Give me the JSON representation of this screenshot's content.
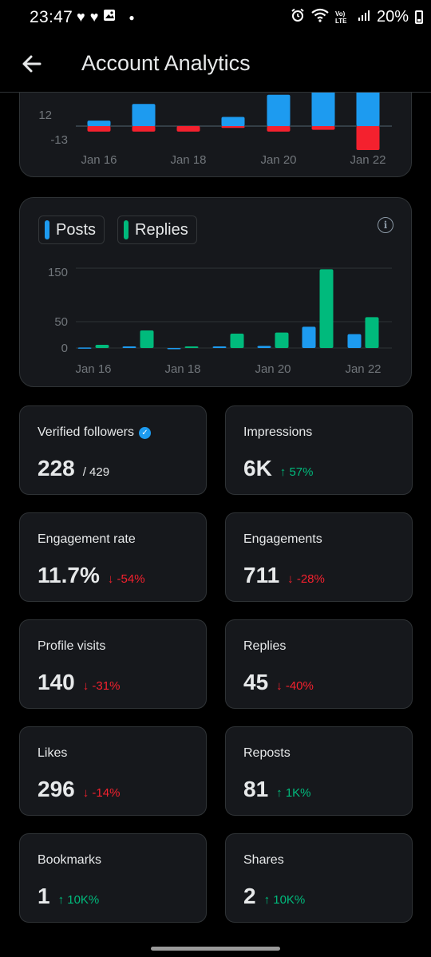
{
  "status_bar": {
    "time": "23:47",
    "battery": "20%",
    "network": "Vo) LTE"
  },
  "app_bar": {
    "title": "Account Analytics"
  },
  "top_chart": {
    "y_ticks": [
      "12",
      "-13"
    ],
    "x_ticks": [
      "Jan 16",
      "Jan 18",
      "Jan 20",
      "Jan 22"
    ]
  },
  "chart_data": [
    {
      "type": "bar",
      "categories": [
        "Jan 16",
        "Jan 17",
        "Jan 18",
        "Jan 19",
        "Jan 20",
        "Jan 21",
        "Jan 22"
      ],
      "series": [
        {
          "values": [
            3,
            12,
            0,
            5,
            17,
            37,
            38
          ],
          "color": "#1d9bf0"
        },
        {
          "values": [
            -3,
            -3,
            -3,
            -1,
            -3,
            -2,
            -13
          ],
          "color": "#f4212e"
        }
      ],
      "y_ticks": [
        12,
        -13
      ],
      "x_ticks": [
        "Jan 16",
        "Jan 18",
        "Jan 20",
        "Jan 22"
      ]
    },
    {
      "type": "bar",
      "categories": [
        "Jan 16",
        "Jan 17",
        "Jan 18",
        "Jan 19",
        "Jan 20",
        "Jan 21",
        "Jan 22"
      ],
      "series": [
        {
          "name": "Posts",
          "values": [
            1,
            3,
            0,
            3,
            4,
            40,
            26
          ],
          "color": "#1d9bf0"
        },
        {
          "name": "Replies",
          "values": [
            6,
            33,
            3,
            27,
            29,
            148,
            58
          ],
          "color": "#00ba7c"
        }
      ],
      "y_ticks": [
        150,
        50,
        0
      ],
      "x_ticks": [
        "Jan 16",
        "Jan 18",
        "Jan 20",
        "Jan 22"
      ],
      "legend_position": "top-left"
    }
  ],
  "activity_chart": {
    "legend": {
      "posts": "Posts",
      "replies": "Replies"
    },
    "y_ticks": [
      "150",
      "50",
      "0"
    ],
    "x_ticks": [
      "Jan 16",
      "Jan 18",
      "Jan 20",
      "Jan 22"
    ],
    "info_icon": "i"
  },
  "metrics": {
    "verified_followers": {
      "label": "Verified followers",
      "value": "228",
      "sub": "/ 429"
    },
    "impressions": {
      "label": "Impressions",
      "value": "6K",
      "delta": "↑ 57%"
    },
    "engagement_rate": {
      "label": "Engagement rate",
      "value": "11.7%",
      "delta": "↓ -54%"
    },
    "engagements": {
      "label": "Engagements",
      "value": "711",
      "delta": "↓ -28%"
    },
    "profile_visits": {
      "label": "Profile visits",
      "value": "140",
      "delta": "↓ -31%"
    },
    "replies": {
      "label": "Replies",
      "value": "45",
      "delta": "↓ -40%"
    },
    "likes": {
      "label": "Likes",
      "value": "296",
      "delta": "↓ -14%"
    },
    "reposts": {
      "label": "Reposts",
      "value": "81",
      "delta": "↑ 1K%"
    },
    "bookmarks": {
      "label": "Bookmarks",
      "value": "1",
      "delta": "↑ 10K%"
    },
    "shares": {
      "label": "Shares",
      "value": "2",
      "delta": "↑ 10K%"
    }
  }
}
